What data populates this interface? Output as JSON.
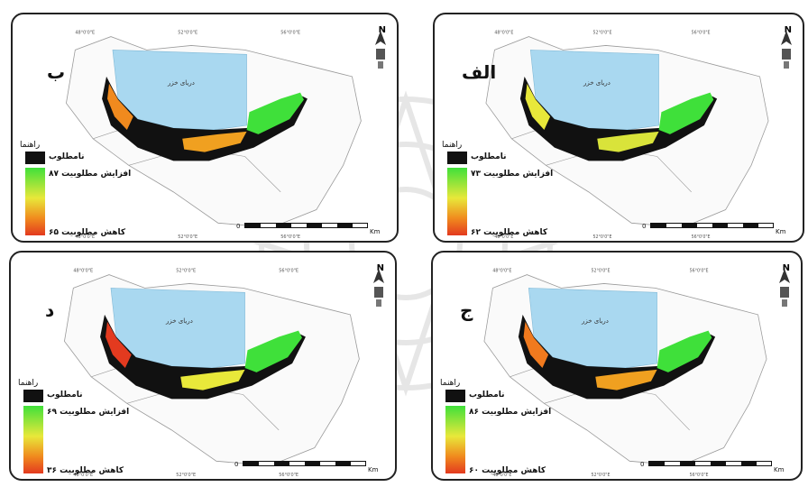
{
  "legend": {
    "title": "راهنما",
    "unsuitable": "نامطلوب",
    "scale_unit": "Km",
    "scale_ticks": [
      "0",
      "50",
      "100",
      "200",
      "300",
      "400"
    ]
  },
  "north_label": "N",
  "sea_label": "دریای خزر",
  "coord_top": [
    "48°0'0\"E",
    "52°0'0\"E",
    "56°0'0\"E"
  ],
  "panels": [
    {
      "letter": "ب",
      "high": "افزایش مطلوبیت ۸۷",
      "low": "کاهش مطلوبیت ۶۵"
    },
    {
      "letter": "الف",
      "high": "افزایش مطلوبیت ۷۳",
      "low": "کاهش مطلوبیت ۶۲"
    },
    {
      "letter": "د",
      "high": "افزایش مطلوبیت ۶۹",
      "low": "کاهش مطلوبیت ۳۶"
    },
    {
      "letter": "ج",
      "high": "افزایش مطلوبیت ۸۶",
      "low": "کاهش مطلوبیت ۶۰"
    }
  ],
  "colors": {
    "sea": "#a9d8f0",
    "unsuitable": "#111111",
    "high": "#3fe03a",
    "low": "#e33a1f",
    "border": "#222222"
  }
}
